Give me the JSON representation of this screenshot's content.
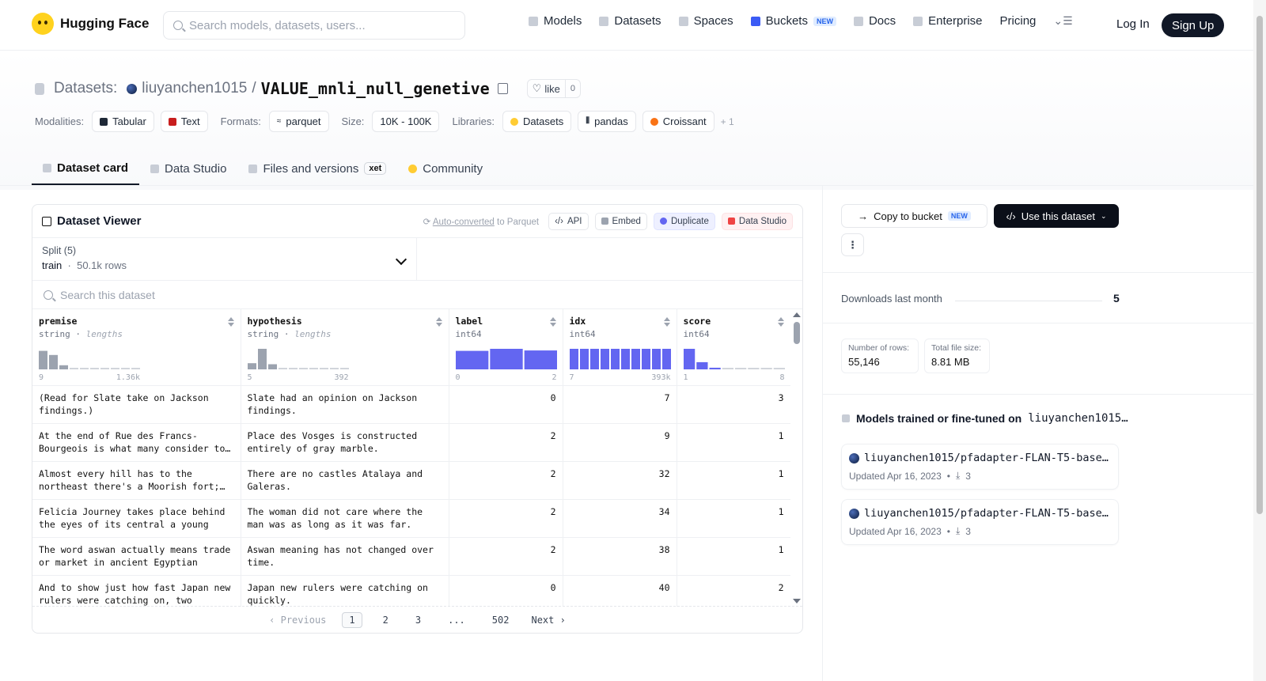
{
  "header": {
    "logo_text": "Hugging Face",
    "search_placeholder": "Search models, datasets, users...",
    "nav": [
      {
        "label": "Models",
        "icon": "cube-icon"
      },
      {
        "label": "Datasets",
        "icon": "database-icon"
      },
      {
        "label": "Spaces",
        "icon": "grid-icon"
      },
      {
        "label": "Buckets",
        "icon": "bucket-icon",
        "badge": "NEW"
      },
      {
        "label": "Docs",
        "icon": "book-icon"
      },
      {
        "label": "Enterprise",
        "icon": "enterprise-icon"
      },
      {
        "label": "Pricing"
      }
    ],
    "login": "Log In",
    "signup": "Sign Up"
  },
  "dataset": {
    "crumb": "Datasets:",
    "owner": "liuyanchen1015",
    "separator": "/",
    "name": "VALUE_mnli_null_genetive",
    "like_label": "like",
    "like_count": "0"
  },
  "tags": {
    "modalities_label": "Modalities:",
    "modalities": [
      "Tabular",
      "Text"
    ],
    "formats_label": "Formats:",
    "formats": [
      "parquet"
    ],
    "size_label": "Size:",
    "size": "10K - 100K",
    "libraries_label": "Libraries:",
    "libraries": [
      "Datasets",
      "pandas",
      "Croissant"
    ],
    "more": "+ 1"
  },
  "tabs": [
    {
      "label": "Dataset card",
      "active": true
    },
    {
      "label": "Data Studio"
    },
    {
      "label": "Files and versions",
      "badge": "xet"
    },
    {
      "label": "Community"
    }
  ],
  "viewer": {
    "title": "Dataset Viewer",
    "auto_converted": "Auto-converted",
    "to_parquet": "to Parquet",
    "api": "API",
    "embed": "Embed",
    "duplicate": "Duplicate",
    "data_studio": "Data Studio",
    "split_label": "Split (5)",
    "split_value": "train",
    "split_rows": "50.1k rows",
    "search_placeholder": "Search this dataset",
    "columns": [
      {
        "name": "premise",
        "type": "string",
        "sub": "lengths",
        "min": "9",
        "max": "1.36k",
        "hist": [
          0.9,
          0.7,
          0.2,
          0.05,
          0.05,
          0.05,
          0.05,
          0.05,
          0.05,
          0.05
        ],
        "hist_color": "#9ca3af"
      },
      {
        "name": "hypothesis",
        "type": "string",
        "sub": "lengths",
        "min": "5",
        "max": "392",
        "hist": [
          0.3,
          1.0,
          0.25,
          0.05,
          0.05,
          0.05,
          0.05,
          0.05,
          0.05,
          0.05
        ],
        "hist_color": "#9ca3af"
      },
      {
        "name": "label",
        "type": "int64",
        "sub": "",
        "min": "0",
        "max": "2",
        "hist": [
          0.9,
          1.0,
          0.92
        ],
        "hist_color": "#6366f1"
      },
      {
        "name": "idx",
        "type": "int64",
        "sub": "",
        "min": "7",
        "max": "393k",
        "hist": [
          1,
          1,
          1,
          1,
          1,
          1,
          1,
          1,
          1,
          1
        ],
        "hist_color": "#6366f1"
      },
      {
        "name": "score",
        "type": "int64",
        "sub": "",
        "min": "1",
        "max": "8",
        "hist": [
          1.0,
          0.35,
          0.08,
          0.04,
          0.04,
          0.04,
          0.04,
          0.04
        ],
        "hist_color": "#6366f1"
      }
    ],
    "rows": [
      [
        "(Read for Slate take on Jackson findings.)",
        "Slate had an opinion on Jackson findings.",
        "0",
        "7",
        "3"
      ],
      [
        "At the end of Rue des Francs-Bourgeois is what many consider to be",
        "Place des Vosges is constructed entirely of gray marble.",
        "2",
        "9",
        "1"
      ],
      [
        "Almost every hill has to the northeast there's a Moorish fort; the",
        "There are no castles Atalaya and Galeras.",
        "2",
        "32",
        "1"
      ],
      [
        "Felicia Journey takes place behind the eyes of its central a young",
        "The woman did not care where the man was as long as it was far.",
        "2",
        "34",
        "1"
      ],
      [
        "The word aswan actually means trade or market in ancient Egyptian",
        "Aswan meaning has not changed over time.",
        "2",
        "38",
        "1"
      ],
      [
        "And to show just how fast Japan new rulers were catching on, two",
        "Japan new rulers were catching on quickly.",
        "0",
        "40",
        "2"
      ]
    ],
    "pager": {
      "prev": "Previous",
      "pages": [
        "1",
        "2",
        "3",
        "...",
        "502"
      ],
      "next": "Next",
      "current": "1"
    }
  },
  "sidebar": {
    "copy_to_bucket": "Copy to bucket",
    "copy_badge": "NEW",
    "use_dataset": "Use this dataset",
    "downloads_label": "Downloads last month",
    "downloads_value": "5",
    "rows_label": "Number of rows:",
    "rows_value": "55,146",
    "size_label": "Total file size:",
    "size_value": "8.81 MB",
    "models_heading": "Models trained or fine-tuned on",
    "models_heading_ds": "liuyanchen1015…",
    "models": [
      {
        "name": "liuyanchen1015/pfadapter-FLAN-T5-base…",
        "updated": "Updated Apr 16, 2023",
        "downloads": "3"
      },
      {
        "name": "liuyanchen1015/pfadapter-FLAN-T5-base…",
        "updated": "Updated Apr 16, 2023",
        "downloads": "3"
      }
    ]
  }
}
